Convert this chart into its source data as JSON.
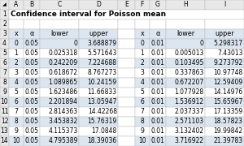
{
  "title": "Confidence interval for Poisson mean",
  "col_headers": [
    "",
    "A",
    "B",
    "C",
    "D",
    "E",
    "F",
    "G",
    "H",
    "I"
  ],
  "header_left": [
    "x",
    "α",
    "lower",
    "upper"
  ],
  "header_right": [
    "x",
    "α",
    "lower",
    "upper"
  ],
  "left_data": [
    [
      "0",
      "0.05",
      "0",
      "3.688879"
    ],
    [
      "1",
      "0.05",
      "0.025318",
      "5.571643"
    ],
    [
      "2",
      "0.05",
      "0.242209",
      "7.224688"
    ],
    [
      "3",
      "0.05",
      "0.618672",
      "8.767273"
    ],
    [
      "4",
      "0.05",
      "1.089865",
      "10.24159"
    ],
    [
      "5",
      "0.05",
      "1.623486",
      "11.66833"
    ],
    [
      "6",
      "0.05",
      "2.201894",
      "13.05947"
    ],
    [
      "7",
      "0.05",
      "2.814363",
      "14.42268"
    ],
    [
      "8",
      "0.05",
      "3.453832",
      "15.76319"
    ],
    [
      "9",
      "0.05",
      "4.115373",
      "17.0848"
    ],
    [
      "10",
      "0.05",
      "4.795389",
      "18.39036"
    ]
  ],
  "right_data": [
    [
      "0",
      "0.01",
      "0",
      "5.298317"
    ],
    [
      "1",
      "0.01",
      "0.005013",
      "7.43013"
    ],
    [
      "2",
      "0.01",
      "0.103495",
      "9.273792"
    ],
    [
      "3",
      "0.01",
      "0.337863",
      "10.97748"
    ],
    [
      "4",
      "0.01",
      "0.672207",
      "12.59409"
    ],
    [
      "5",
      "0.01",
      "1.077928",
      "14.14976"
    ],
    [
      "6",
      "0.01",
      "1.536912",
      "15.65967"
    ],
    [
      "7",
      "0.01",
      "2.037337",
      "17.13359"
    ],
    [
      "8",
      "0.01",
      "2.571103",
      "18.57823"
    ],
    [
      "9",
      "0.01",
      "3.132402",
      "19.99842"
    ],
    [
      "10",
      "0.01",
      "3.716922",
      "21.39783"
    ]
  ],
  "row_num_bg": "#e8e8e8",
  "col_hdr_bg": "#e8e8e8",
  "title_bg": "#ffffff",
  "blank_bg": "#ffffff",
  "header_bg": "#dce6f1",
  "data_bg_alt": "#dce6f1",
  "data_bg_main": "#ffffff",
  "grid_color": "#b8b8b8",
  "title_fontsize": 6.5,
  "header_fontsize": 5.8,
  "cell_fontsize": 5.5,
  "row_num_fontsize": 5.5
}
